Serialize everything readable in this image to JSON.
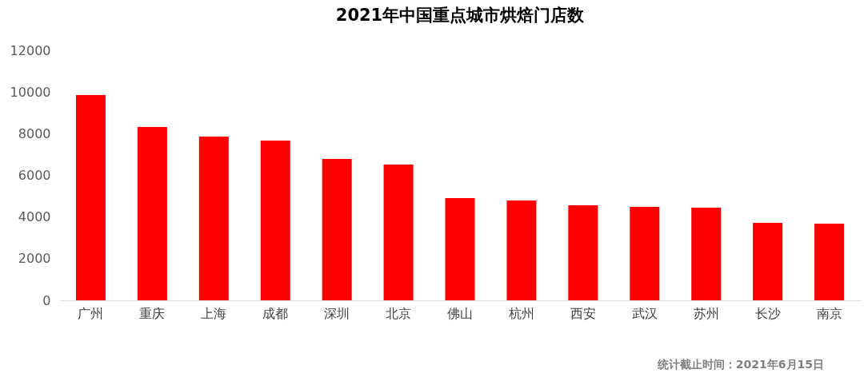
{
  "chart_data": {
    "type": "bar",
    "title": "2021年中国重点城市烘焙门店数",
    "categories": [
      "广州",
      "重庆",
      "上海",
      "成都",
      "深圳",
      "北京",
      "佛山",
      "杭州",
      "西安",
      "武汉",
      "苏州",
      "长沙",
      "南京"
    ],
    "values": [
      9850,
      8320,
      7860,
      7670,
      6790,
      6520,
      4910,
      4790,
      4560,
      4490,
      4450,
      3720,
      3680
    ],
    "color": "#ff0000",
    "ylim": [
      0,
      12000
    ],
    "yticks": [
      0,
      2000,
      4000,
      6000,
      8000,
      10000,
      12000
    ],
    "grid": false,
    "annotations": [
      "统计截止时间：2021年6月15日"
    ]
  }
}
